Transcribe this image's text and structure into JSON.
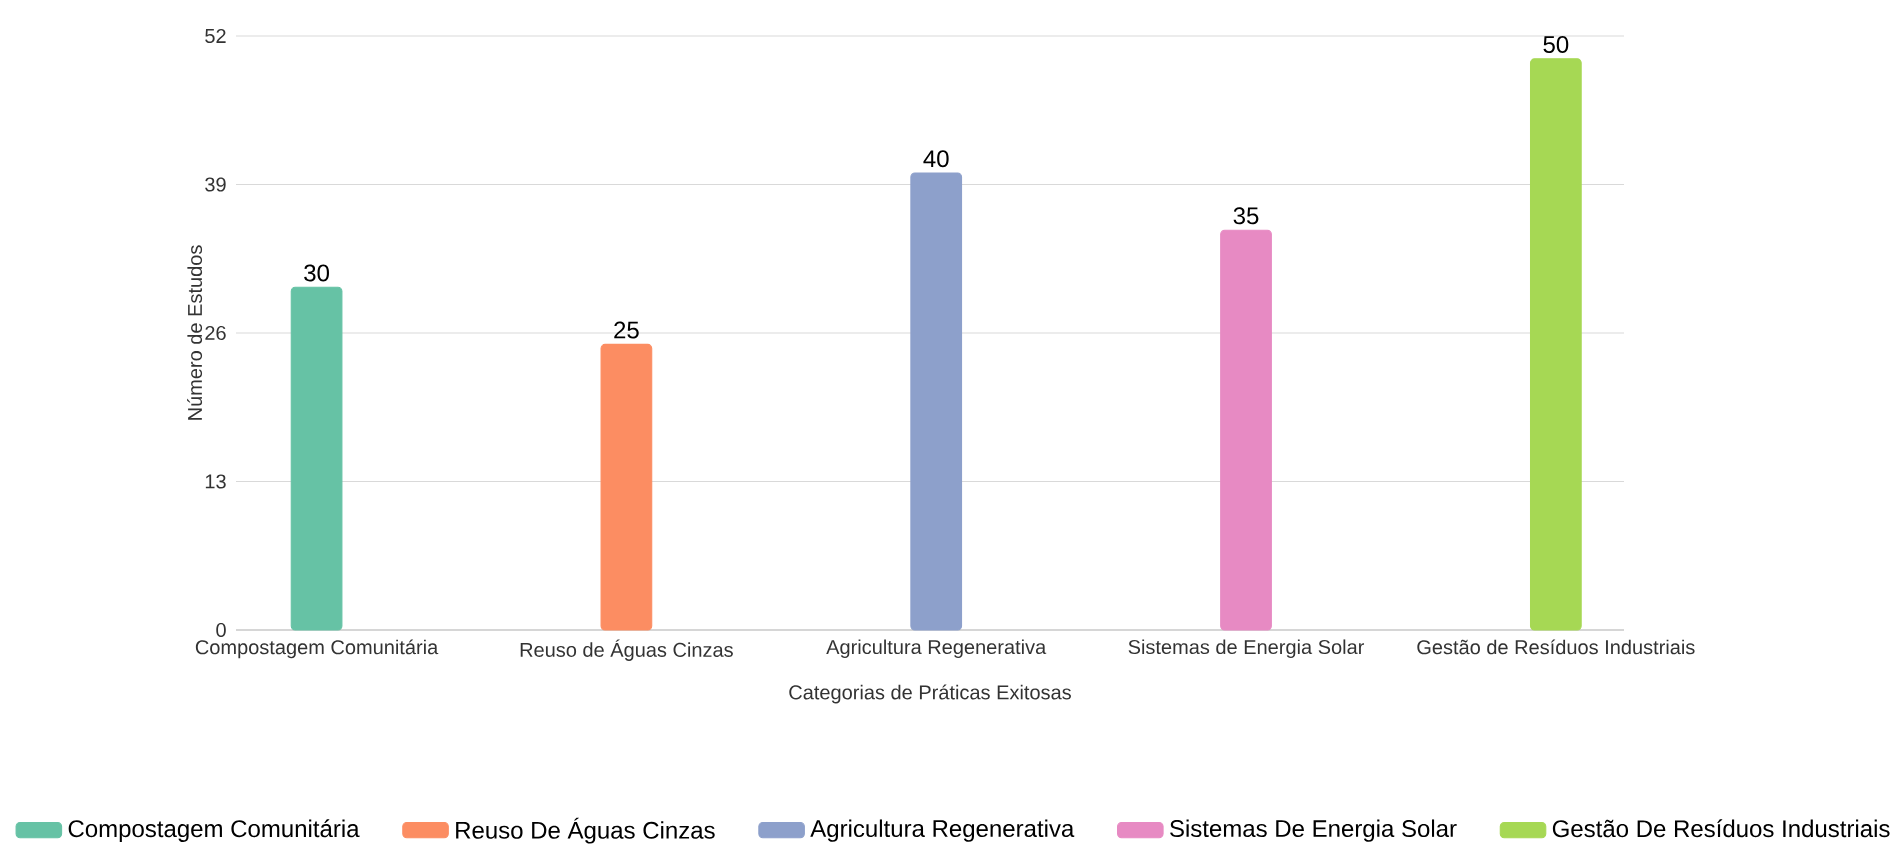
{
  "chart_data": {
    "type": "bar",
    "xlabel": "Categorias de Práticas Exitosas",
    "ylabel": "Número de Estudos",
    "categories": [
      "Compostagem Comunitária",
      "Reuso de Águas Cinzas",
      "Agricultura Regenerativa",
      "Sistemas de Energia Solar",
      "Gestão de Resíduos Industriais"
    ],
    "series": [
      {
        "name": "Compostagem Comunitária",
        "color": "#66c2a5",
        "values": [
          30,
          null,
          null,
          null,
          null
        ]
      },
      {
        "name": "Reuso De Águas Cinzas",
        "color": "#fc8d62",
        "values": [
          null,
          25,
          null,
          null,
          null
        ]
      },
      {
        "name": "Agricultura Regenerativa",
        "color": "#8da0cb",
        "values": [
          null,
          null,
          40,
          null,
          null
        ]
      },
      {
        "name": "Sistemas De Energia Solar",
        "color": "#e78ac3",
        "values": [
          null,
          null,
          null,
          35,
          null
        ]
      },
      {
        "name": "Gestão De Resíduos Industriais",
        "color": "#a6d854",
        "values": [
          null,
          null,
          null,
          null,
          50
        ]
      }
    ],
    "ylim": [
      0,
      52
    ],
    "yticks": [
      0,
      13,
      26,
      39,
      52
    ],
    "grid": "y",
    "legend": "bottom",
    "data_labels": true
  }
}
